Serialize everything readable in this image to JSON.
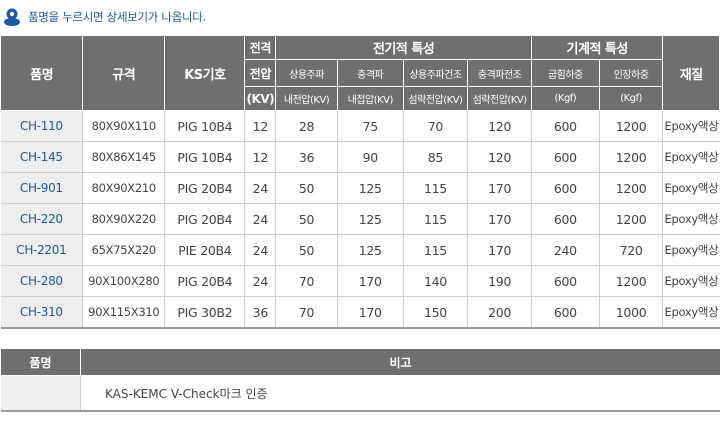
{
  "notice": {
    "text": "품명을 누르시면 상세보기가 나옵니다.",
    "icon": "map-pin-icon"
  },
  "header": {
    "model": "품명",
    "size": "규격",
    "ks": "KS기호",
    "voltage_top": "전격",
    "voltage_mid": "전압",
    "voltage_unit": "(KV)",
    "electrical": "전기적 특성",
    "mechanical": "기계적 특성",
    "material": "재질",
    "elec_cols": [
      {
        "line1": "상용주파",
        "line2": "내전압(KV)"
      },
      {
        "line1": "충격파",
        "line2": "내접압(KV)"
      },
      {
        "line1": "상용주파건조",
        "line2": "섬락전압(KV)"
      },
      {
        "line1": "충격파전조",
        "line2": "섬락전압(KV)"
      }
    ],
    "mech_cols": [
      {
        "line1": "굽힘하중",
        "line2": "(Kgf)"
      },
      {
        "line1": "인장하중",
        "line2": "(Kgf)"
      }
    ]
  },
  "rows": [
    {
      "model": "CH-110",
      "size": "80X90X110",
      "ks": "PIG 10B4",
      "kv": "12",
      "e1": "28",
      "e2": "75",
      "e3": "70",
      "e4": "120",
      "m1": "600",
      "m2": "1200",
      "material": "Epoxy액상"
    },
    {
      "model": "CH-145",
      "size": "80X86X145",
      "ks": "PIG 10B4",
      "kv": "12",
      "e1": "36",
      "e2": "90",
      "e3": "85",
      "e4": "120",
      "m1": "600",
      "m2": "1200",
      "material": "Epoxy액상"
    },
    {
      "model": "CH-901",
      "size": "80X90X210",
      "ks": "PIG 20B4",
      "kv": "24",
      "e1": "50",
      "e2": "125",
      "e3": "115",
      "e4": "170",
      "m1": "600",
      "m2": "1200",
      "material": "Epoxy액상"
    },
    {
      "model": "CH-220",
      "size": "80X90X220",
      "ks": "PIG 20B4",
      "kv": "24",
      "e1": "50",
      "e2": "125",
      "e3": "115",
      "e4": "170",
      "m1": "600",
      "m2": "1200",
      "material": "Epoxy액상"
    },
    {
      "model": "CH-2201",
      "size": "65X75X220",
      "ks": "PIE 20B4",
      "kv": "24",
      "e1": "50",
      "e2": "125",
      "e3": "115",
      "e4": "170",
      "m1": "240",
      "m2": "720",
      "material": "Epoxy액상"
    },
    {
      "model": "CH-280",
      "size": "90X100X280",
      "ks": "PIG 20B4",
      "kv": "24",
      "e1": "70",
      "e2": "170",
      "e3": "140",
      "e4": "190",
      "m1": "600",
      "m2": "1200",
      "material": "Epoxy액상"
    },
    {
      "model": "CH-310",
      "size": "90X115X310",
      "ks": "PIG 30B2",
      "kv": "36",
      "e1": "70",
      "e2": "170",
      "e3": "150",
      "e4": "200",
      "m1": "600",
      "m2": "1000",
      "material": "Epoxy액상"
    }
  ],
  "note": {
    "label_header": "품명",
    "text_header": "비고",
    "label": "",
    "text": "KAS-KEMC V-Check마크 인증"
  }
}
